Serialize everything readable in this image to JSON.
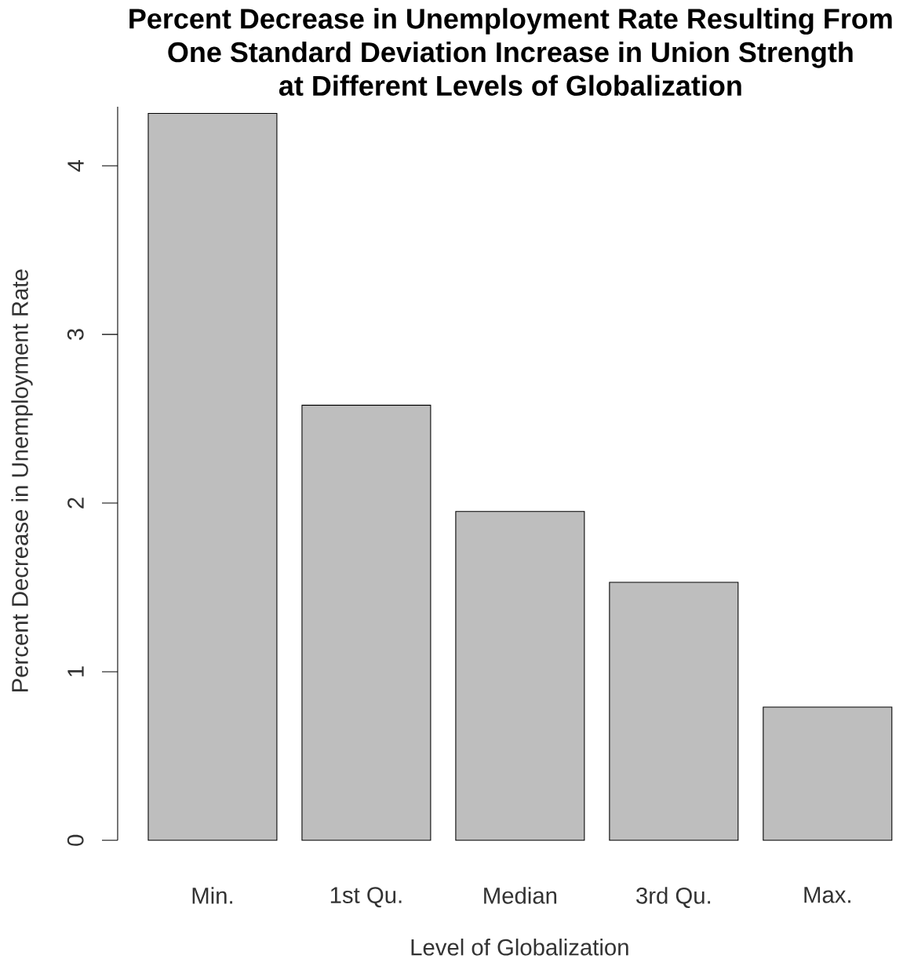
{
  "chart_data": {
    "type": "bar",
    "title": "Percent Decrease in Unemployment Rate Resulting From One Standard Deviation Increase in Union Strength at Different Levels of Globalization",
    "xlabel": "Level of Globalization",
    "ylabel": "Percent Decrease in Unemployment Rate",
    "categories": [
      "Min.",
      "1st Qu.",
      "Median",
      "3rd Qu.",
      "Max."
    ],
    "values": [
      4.31,
      2.58,
      1.95,
      1.53,
      0.79
    ],
    "color": "#bebebe",
    "ylim": [
      0,
      4.35
    ],
    "yticks": [
      0,
      1,
      2,
      3,
      4
    ],
    "grid": false
  }
}
